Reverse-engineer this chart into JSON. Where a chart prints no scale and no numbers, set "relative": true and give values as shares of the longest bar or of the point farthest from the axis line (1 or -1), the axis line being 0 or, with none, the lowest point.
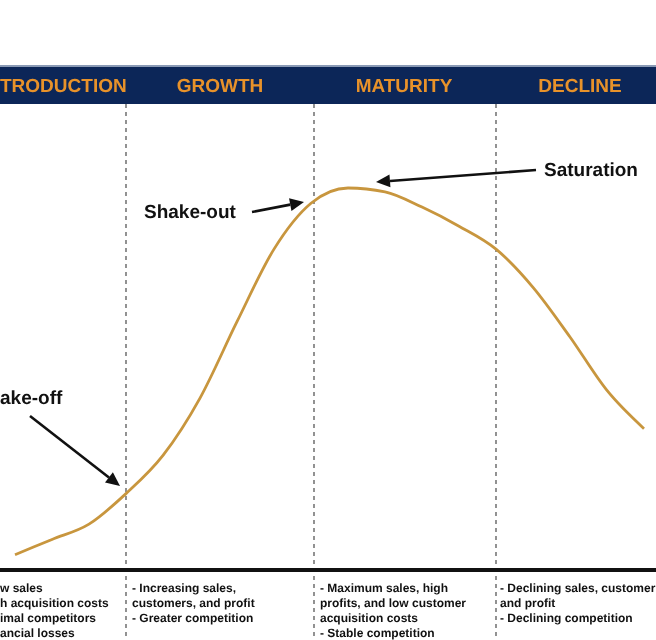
{
  "chart_data": {
    "type": "line",
    "relative": true,
    "categories": [
      null,
      null,
      null,
      null,
      null,
      null,
      null,
      null,
      null,
      null,
      null,
      null,
      null,
      null,
      null,
      null,
      null,
      null
    ],
    "series": [
      {
        "color": "#c8963e",
        "values": [
          0.04,
          0.08,
          0.12,
          0.2,
          0.3,
          0.45,
          0.65,
          0.84,
          0.96,
          1.0,
          0.99,
          0.95,
          0.9,
          0.84,
          0.74,
          0.61,
          0.47,
          0.37
        ]
      }
    ],
    "annotations": [
      "TRODUCTION",
      "GROWTH",
      "MATURITY",
      "DECLINE",
      "ake-off",
      "Shake-out",
      "Saturation",
      "w sales\nh acquisition costs\nimal competitors\nancial losses",
      "- Increasing sales,\ncustomers, and profit\n- Greater competition",
      "- Maximum sales, high\nprofits, and low customer\nacquisition costs\n- Stable competition",
      "- Declining sales, customer\nand profit\n- Declining competition"
    ],
    "grid": "x",
    "marker": "none",
    "line_style": "solid"
  }
}
